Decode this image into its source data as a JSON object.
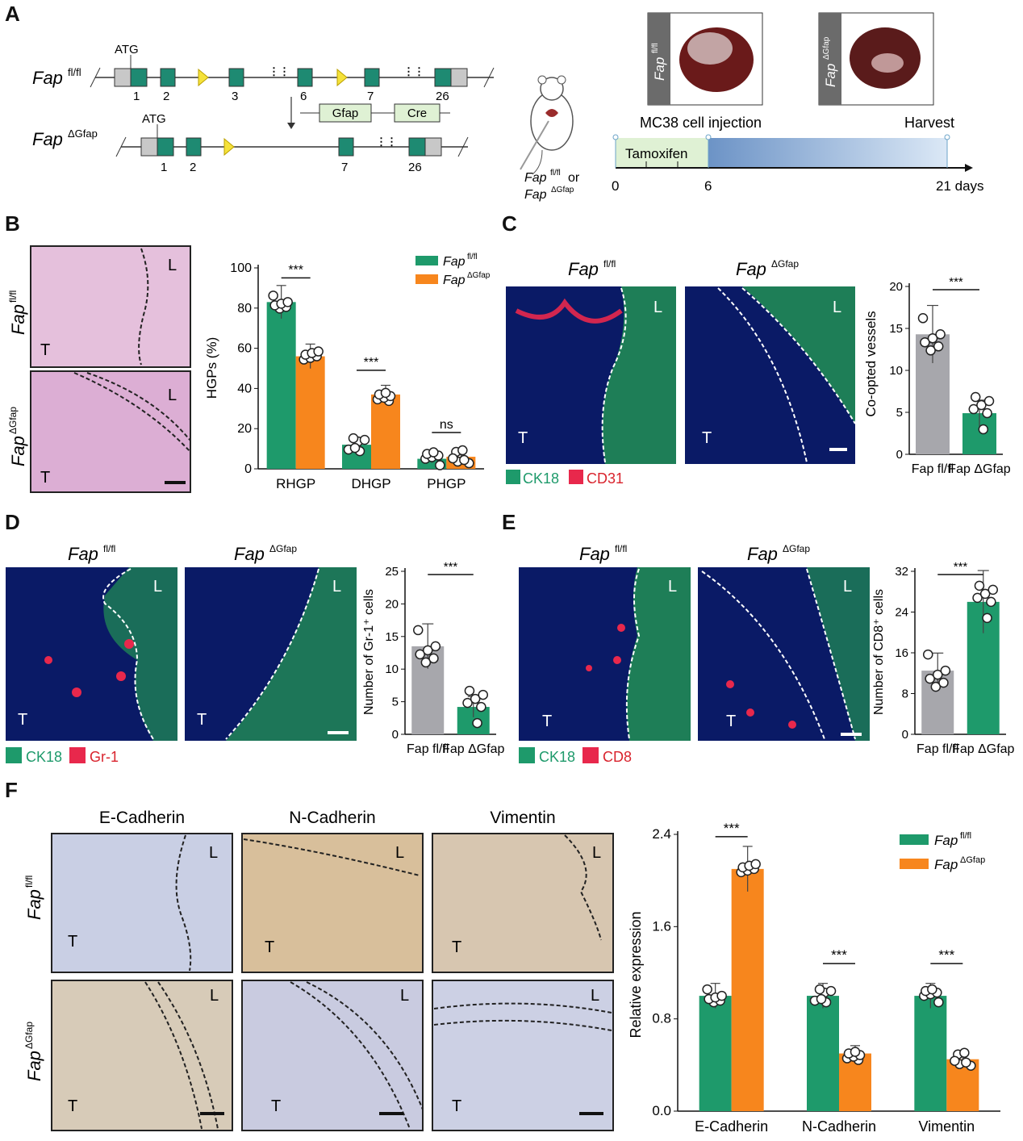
{
  "colors": {
    "green": "#1e9a6b",
    "orange": "#f7861d",
    "gray": "#a7a7ac",
    "he": "#e7c2df",
    "ihc": "#dcc7ab",
    "fluor_bg": "#0a1a66",
    "ck18": "#2fd24a",
    "red": "#e8284c",
    "label_red": "#d9232d"
  },
  "panel_letters": [
    "A",
    "B",
    "C",
    "D",
    "E",
    "F"
  ],
  "genotypes": {
    "ctrl_base": "Fap",
    "ctrl_sup": "fl/fl",
    "ko_base": "Fap",
    "ko_sup": "ΔGfap"
  },
  "panel_a": {
    "atg": "ATG",
    "exons_top": [
      "1",
      "2",
      "3",
      "6",
      "7",
      "26"
    ],
    "exons_bottom": [
      "1",
      "2",
      "7",
      "26"
    ],
    "gfap": "Gfap",
    "cre": "Cre",
    "mouse_or": "or",
    "injection": "MC38 cell injection",
    "harvest": "Harvest",
    "tamoxifen": "Tamoxifen",
    "timeline_ticks": [
      "0",
      "6",
      "21 days"
    ]
  },
  "panel_b": {
    "image_labels": {
      "liver": "L",
      "tumor": "T"
    }
  },
  "panel_c": {
    "legend": [
      "CK18",
      "CD31"
    ]
  },
  "panel_d": {
    "legend": [
      "CK18",
      "Gr-1"
    ]
  },
  "panel_e": {
    "legend": [
      "CK18",
      "CD8"
    ]
  },
  "panel_f": {
    "markers": [
      "E-Cadherin",
      "N-Cadherin",
      "Vimentin"
    ]
  },
  "chart_data": [
    {
      "type": "bar",
      "panel": "B",
      "ylabel": "HGPs (%)",
      "ylim": [
        0,
        100
      ],
      "yticks": [
        0,
        20,
        40,
        60,
        80,
        100
      ],
      "categories": [
        "RHGP",
        "DHGP",
        "PHGP"
      ],
      "series": [
        {
          "name": "Fap fl/fl",
          "values": [
            83,
            12,
            5
          ]
        },
        {
          "name": "Fap ΔGfap",
          "values": [
            56,
            37,
            6
          ]
        }
      ],
      "significance": [
        "***",
        "***",
        "ns"
      ],
      "legend": "top-right"
    },
    {
      "type": "bar",
      "panel": "C",
      "ylabel": "Co-opted vessels",
      "ylim": [
        0,
        20
      ],
      "yticks": [
        0,
        5,
        10,
        15,
        20
      ],
      "categories": [
        "Fap fl/fl",
        "Fap ΔGfap"
      ],
      "values": [
        14.3,
        4.9
      ],
      "significance": [
        "***"
      ]
    },
    {
      "type": "bar",
      "panel": "D",
      "ylabel": "Number of Gr-1⁺ cells",
      "ylim": [
        0,
        25
      ],
      "yticks": [
        0,
        5,
        10,
        15,
        20,
        25
      ],
      "categories": [
        "Fap fl/fl",
        "Fap ΔGfap"
      ],
      "values": [
        13.5,
        4.2
      ],
      "significance": [
        "***"
      ]
    },
    {
      "type": "bar",
      "panel": "E",
      "ylabel": "Number of CD8⁺ cells",
      "ylim": [
        0,
        32
      ],
      "yticks": [
        0,
        8,
        16,
        24,
        32
      ],
      "categories": [
        "Fap fl/fl",
        "Fap ΔGfap"
      ],
      "values": [
        12.5,
        26
      ],
      "significance": [
        "***"
      ]
    },
    {
      "type": "bar",
      "panel": "F",
      "ylabel": "Relative expression",
      "ylim": [
        0,
        2.4
      ],
      "yticks": [
        "0.0",
        "0.8",
        "1.6",
        "2.4"
      ],
      "categories": [
        "E-Cadherin",
        "N-Cadherin",
        "Vimentin"
      ],
      "series": [
        {
          "name": "Fap fl/fl",
          "values": [
            1.0,
            1.0,
            1.0
          ]
        },
        {
          "name": "Fap ΔGfap",
          "values": [
            2.1,
            0.5,
            0.45
          ]
        }
      ],
      "significance": [
        "***",
        "***",
        "***"
      ],
      "legend": "top-right"
    }
  ]
}
